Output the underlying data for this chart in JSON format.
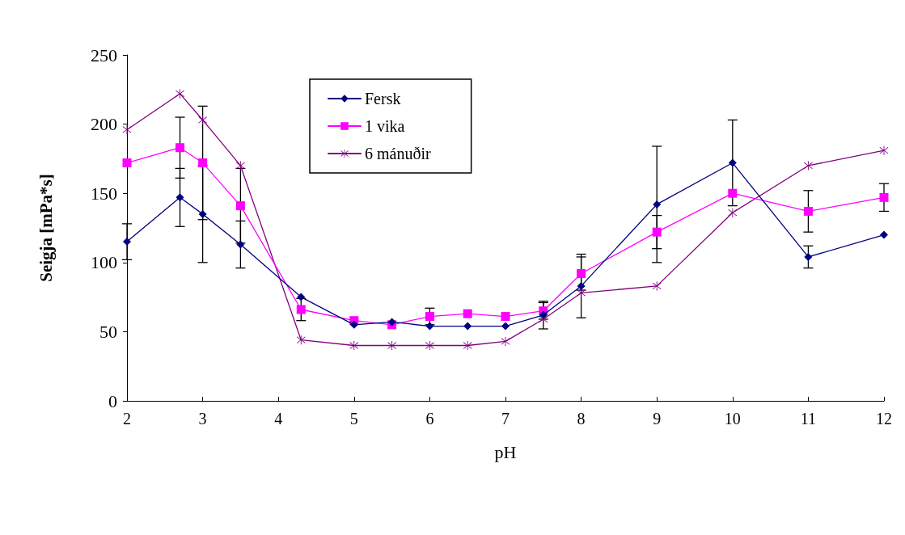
{
  "chart_data": {
    "type": "line",
    "xlabel": "pH",
    "ylabel": "Seigja [mPa*s]",
    "x": [
      2,
      2.7,
      3,
      3.5,
      4.3,
      5,
      5.5,
      6,
      6.5,
      7,
      7.5,
      8,
      9,
      10,
      11,
      12
    ],
    "xlim": [
      2,
      12
    ],
    "xticks": [
      2,
      3,
      4,
      5,
      6,
      7,
      8,
      9,
      10,
      11,
      12
    ],
    "ylim": [
      0,
      250
    ],
    "yticks": [
      0,
      50,
      100,
      150,
      200,
      250
    ],
    "grid": false,
    "legend": "top left",
    "line_style": "solid",
    "series": [
      {
        "name": "Fersk",
        "color": "#000080",
        "marker": "diamond",
        "values": [
          115,
          147,
          135,
          113,
          75,
          55,
          57,
          54,
          54,
          54,
          62,
          83,
          142,
          172,
          104,
          120
        ],
        "errors": [
          13,
          21,
          35,
          17,
          null,
          null,
          null,
          null,
          null,
          null,
          10,
          23,
          42,
          31,
          8,
          null
        ]
      },
      {
        "name": "1 vika",
        "color": "#ff00ff",
        "marker": "square",
        "values": [
          172,
          183,
          172,
          141,
          66,
          58,
          55,
          61,
          63,
          61,
          65,
          92,
          122,
          150,
          137,
          147
        ],
        "errors": [
          null,
          22,
          41,
          27,
          8,
          null,
          null,
          6,
          null,
          null,
          6,
          12,
          12,
          null,
          15,
          10
        ]
      },
      {
        "name": "6 mánuðir",
        "color": "#800080",
        "marker": "cross",
        "values": [
          196,
          222,
          203,
          170,
          44,
          40,
          40,
          40,
          40,
          43,
          59,
          78,
          83,
          136,
          170,
          181
        ]
      }
    ]
  }
}
